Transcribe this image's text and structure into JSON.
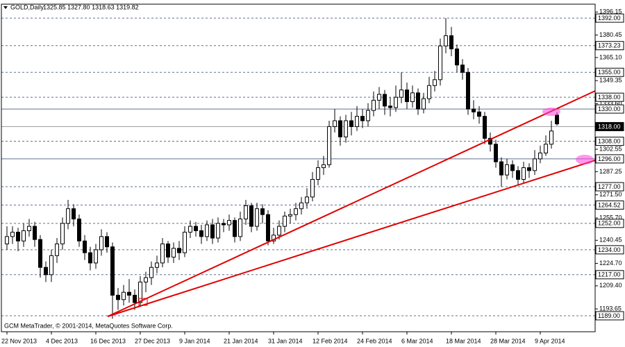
{
  "chart_data": {
    "type": "candlestick",
    "title": "GOLD,Daily",
    "ohlc_text": "1325.85 1327.80 1318.63 1319.82",
    "copyright": "GCM MetaTrader, © 2001-2014, MetaQuotes Software Corp.",
    "categories": [
      "22 Nov 2013",
      null,
      null,
      null,
      null,
      null,
      null,
      null,
      "4 Dec 2013",
      null,
      null,
      null,
      null,
      null,
      null,
      null,
      "16 Dec 2013",
      null,
      null,
      null,
      null,
      null,
      null,
      null,
      "27 Dec 2013",
      null,
      null,
      null,
      null,
      null,
      null,
      null,
      "9 Jan 2014",
      null,
      null,
      null,
      null,
      null,
      null,
      null,
      "21 Jan 2014",
      null,
      null,
      null,
      null,
      null,
      null,
      null,
      "31 Jan 2014",
      null,
      null,
      null,
      null,
      null,
      null,
      null,
      "12 Feb 2014",
      null,
      null,
      null,
      null,
      null,
      null,
      null,
      "24 Feb 2014",
      null,
      null,
      null,
      null,
      null,
      null,
      null,
      "6 Mar 2014",
      null,
      null,
      null,
      null,
      null,
      null,
      null,
      "18 Mar 2014",
      null,
      null,
      null,
      null,
      null,
      null,
      null,
      "28 Mar 2014",
      null,
      null,
      null,
      null,
      null,
      null,
      null,
      "9 Apr 2014",
      null,
      null,
      null
    ],
    "open": [
      1238,
      1243,
      1246,
      1240,
      1247,
      1250,
      1241,
      1222,
      1217,
      1230,
      1238,
      1252,
      1262,
      1255,
      1240,
      1232,
      1225,
      1234,
      1243,
      1236,
      1203,
      1200,
      1205,
      1203,
      1198,
      1212,
      1215,
      1222,
      1225,
      1238,
      1229,
      1235,
      1232,
      1246,
      1250,
      1247,
      1243,
      1251,
      1242,
      1252,
      1251,
      1254,
      1243,
      1255,
      1264,
      1250,
      1262,
      1258,
      1240,
      1244,
      1250,
      1257,
      1258,
      1262,
      1266,
      1270,
      1282,
      1290,
      1292,
      1318,
      1322,
      1311,
      1322,
      1318,
      1325,
      1322,
      1329,
      1336,
      1340,
      1332,
      1331,
      1338,
      1343,
      1335,
      1341,
      1330,
      1337,
      1346,
      1350,
      1373,
      1380,
      1371,
      1360,
      1355,
      1330,
      1328,
      1325,
      1310,
      1306,
      1294,
      1285,
      1292,
      1288,
      1282,
      1290,
      1288,
      1296,
      1300,
      1306,
      1325.85
    ],
    "high": [
      1250,
      1250,
      1249,
      1252,
      1255,
      1253,
      1244,
      1226,
      1234,
      1242,
      1256,
      1268,
      1265,
      1258,
      1244,
      1236,
      1238,
      1248,
      1246,
      1239,
      1208,
      1210,
      1214,
      1207,
      1216,
      1219,
      1226,
      1230,
      1242,
      1240,
      1239,
      1240,
      1250,
      1254,
      1253,
      1251,
      1254,
      1255,
      1256,
      1255,
      1258,
      1256,
      1260,
      1268,
      1266,
      1266,
      1265,
      1261,
      1249,
      1254,
      1260,
      1262,
      1266,
      1270,
      1276,
      1287,
      1295,
      1298,
      1322,
      1330,
      1325,
      1326,
      1328,
      1332,
      1330,
      1334,
      1342,
      1345,
      1343,
      1338,
      1346,
      1355,
      1348,
      1346,
      1344,
      1341,
      1352,
      1356,
      1378,
      1392,
      1386,
      1374,
      1364,
      1358,
      1336,
      1332,
      1328,
      1314,
      1309,
      1297,
      1296,
      1295,
      1291,
      1294,
      1293,
      1302,
      1305,
      1312,
      1322,
      1327.8
    ],
    "low": [
      1234,
      1238,
      1233,
      1236,
      1243,
      1236,
      1215,
      1212,
      1212,
      1225,
      1234,
      1248,
      1250,
      1236,
      1227,
      1220,
      1221,
      1230,
      1232,
      1187,
      1193,
      1196,
      1198,
      1193,
      1195,
      1205,
      1210,
      1218,
      1222,
      1225,
      1225,
      1227,
      1229,
      1242,
      1243,
      1238,
      1240,
      1238,
      1239,
      1246,
      1247,
      1239,
      1240,
      1251,
      1246,
      1247,
      1252,
      1237,
      1238,
      1241,
      1246,
      1252,
      1254,
      1258,
      1262,
      1267,
      1278,
      1285,
      1290,
      1314,
      1305,
      1307,
      1312,
      1315,
      1317,
      1318,
      1325,
      1330,
      1326,
      1325,
      1328,
      1334,
      1330,
      1331,
      1326,
      1327,
      1334,
      1342,
      1346,
      1368,
      1366,
      1355,
      1350,
      1326,
      1323,
      1320,
      1306,
      1301,
      1290,
      1277,
      1282,
      1283,
      1278,
      1279,
      1283,
      1285,
      1293,
      1298,
      1303,
      1318.63
    ],
    "close": [
      1243,
      1246,
      1240,
      1247,
      1250,
      1241,
      1222,
      1217,
      1230,
      1238,
      1252,
      1262,
      1255,
      1240,
      1232,
      1225,
      1234,
      1243,
      1236,
      1203,
      1200,
      1205,
      1203,
      1198,
      1212,
      1215,
      1222,
      1225,
      1238,
      1229,
      1235,
      1232,
      1246,
      1250,
      1247,
      1243,
      1251,
      1242,
      1252,
      1251,
      1254,
      1243,
      1255,
      1264,
      1250,
      1262,
      1258,
      1240,
      1244,
      1250,
      1257,
      1258,
      1262,
      1266,
      1270,
      1282,
      1290,
      1292,
      1318,
      1322,
      1311,
      1322,
      1318,
      1325,
      1322,
      1329,
      1336,
      1340,
      1332,
      1331,
      1338,
      1343,
      1335,
      1341,
      1330,
      1337,
      1346,
      1350,
      1373,
      1380,
      1371,
      1360,
      1355,
      1330,
      1328,
      1325,
      1310,
      1306,
      1294,
      1285,
      1292,
      1288,
      1282,
      1290,
      1288,
      1296,
      1300,
      1306,
      1315,
      1319.82
    ],
    "bull_color": "#ffffff",
    "bear_color": "#000000",
    "ylim": [
      1178.1,
      1401.5
    ],
    "yticks": [
      1396.15,
      1380.45,
      {
        "value": 1365.1,
        "label": "1365.10"
      },
      1349.35,
      {
        "value": 1333.6,
        "label": "1333.60"
      },
      1302.55,
      1287.25,
      {
        "value": 1271.5,
        "label": "1271.50"
      },
      {
        "value": 1255.7,
        "label": "1255.70"
      },
      1240.45,
      {
        "value": 1224.7,
        "label": "1224.70"
      },
      {
        "value": 1209.4,
        "label": "1209.40"
      },
      1193.65
    ],
    "levels": [
      {
        "value": 1392,
        "label": "1392.00",
        "style": "dashed"
      },
      {
        "value": 1373.23,
        "label": "1373.23",
        "style": "dashed"
      },
      {
        "value": 1355,
        "label": "1355.00",
        "style": "dashed"
      },
      {
        "value": 1338,
        "label": "1338.00",
        "style": "dashed"
      },
      {
        "value": 1330,
        "label": "1330.00",
        "style": "solid"
      },
      {
        "value": 1318,
        "label": "1318.00",
        "style": "current"
      },
      {
        "value": 1308,
        "label": "1308.00",
        "style": "dashed"
      },
      {
        "value": 1296,
        "label": "1296.00",
        "style": "solid"
      },
      {
        "value": 1277,
        "label": "1277.00",
        "style": "dashed"
      },
      {
        "value": 1264.52,
        "label": "1264.52",
        "style": "dashed"
      },
      {
        "value": 1252,
        "label": "1252.00",
        "style": "dashed"
      },
      {
        "value": 1234,
        "label": "1234.00",
        "style": "dashed"
      },
      {
        "value": 1217,
        "label": "1217.00",
        "style": "dashed"
      },
      {
        "value": 1189,
        "label": "1189.00",
        "style": "dashed"
      }
    ],
    "level_color": "#5f6f8f"
  }
}
